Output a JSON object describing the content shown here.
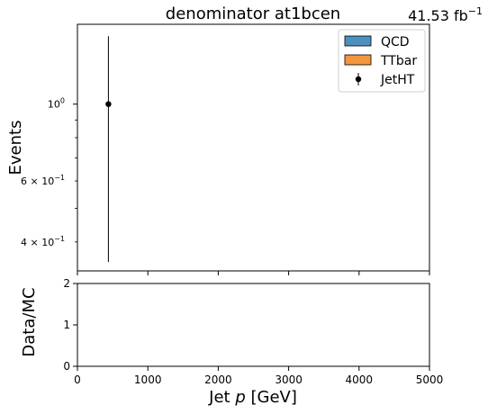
{
  "chart_data": [
    {
      "type": "scatter",
      "title": "denominator  at1bcen",
      "luminosity": "41.53 fb",
      "luminosity_unit_exponent": "−1",
      "ylabel": "Events",
      "yscale": "log",
      "ylim": [
        0.33,
        1.7
      ],
      "xlim": [
        0,
        5000
      ],
      "x_ticks": [
        0,
        1000,
        2000,
        3000,
        4000,
        5000
      ],
      "y_major_ticks": [
        {
          "value": 1.0,
          "mantissa": "",
          "base": "10",
          "exponent": "0"
        }
      ],
      "y_minor_ticks": [
        {
          "value": 0.4,
          "mantissa": "4 × ",
          "base": "10",
          "exponent": "−1",
          "labeled": true
        },
        {
          "value": 0.5,
          "labeled": false
        },
        {
          "value": 0.6,
          "mantissa": "6 × ",
          "base": "10",
          "exponent": "−1",
          "labeled": true
        },
        {
          "value": 0.7,
          "labeled": false
        },
        {
          "value": 0.8,
          "labeled": false
        },
        {
          "value": 0.9,
          "labeled": false
        }
      ],
      "legend": {
        "placement": "top-right",
        "entries": [
          {
            "name": "QCD",
            "kind": "bar",
            "color": "#4c90c0"
          },
          {
            "name": "TTbar",
            "kind": "bar",
            "color": "#f5953f"
          },
          {
            "name": "JetHT",
            "kind": "errorbar",
            "color": "#000000"
          }
        ]
      },
      "series": [
        {
          "name": "JetHT",
          "kind": "errorbar",
          "color": "#000000",
          "points": [
            {
              "x": 440,
              "y": 1.0,
              "y_low": 0.35,
              "y_high": 1.57
            }
          ]
        }
      ]
    },
    {
      "type": "scatter",
      "ylabel": "Data/MC",
      "xlabel_text": "Jet ",
      "xlabel_var": "p",
      "xlabel_unit": " [GeV]",
      "xlim": [
        0,
        5000
      ],
      "ylim": [
        0,
        2
      ],
      "x_ticks": [
        0,
        1000,
        2000,
        3000,
        4000,
        5000
      ],
      "y_ticks": [
        0,
        1,
        2
      ],
      "series": []
    }
  ]
}
